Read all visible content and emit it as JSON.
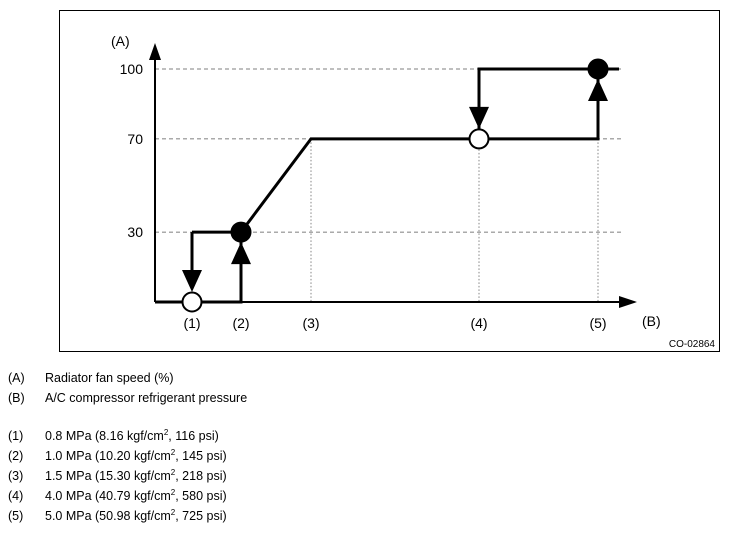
{
  "chart_data": {
    "type": "line",
    "y_axis_label": "(A)",
    "x_axis_label": "(B)",
    "y_ticks": [
      30,
      70,
      100
    ],
    "x_ticks": [
      "(1)",
      "(2)",
      "(3)",
      "(4)",
      "(5)"
    ],
    "ylim": [
      0,
      115
    ],
    "figure_code": "CO-02864",
    "grid": "dashed at y ticks, dotted at x ticks",
    "x_positions": {
      "(1)": 1,
      "(2)": 2,
      "(3)": 3,
      "(4)": 4,
      "(5)": 5
    },
    "rising_path": [
      [
        0.5,
        0
      ],
      [
        2,
        0
      ],
      [
        2,
        30
      ],
      [
        3,
        70
      ],
      [
        5,
        70
      ],
      [
        5,
        100
      ],
      [
        5.4,
        100
      ]
    ],
    "falling_path": [
      [
        5,
        100
      ],
      [
        4,
        100
      ],
      [
        4,
        70
      ]
    ],
    "falling_drop_low": [
      [
        1,
        30
      ],
      [
        2,
        30
      ]
    ],
    "arrows": [
      {
        "at": "(1)",
        "direction": "down",
        "from": 30,
        "to": 0
      },
      {
        "at": "(2)",
        "direction": "up",
        "from": 0,
        "to": 30
      },
      {
        "at": "(4)",
        "direction": "down",
        "from": 100,
        "to": 70
      },
      {
        "at": "(5)",
        "direction": "up",
        "from": 70,
        "to": 100
      }
    ],
    "markers": [
      {
        "x": "(1)",
        "y": 0,
        "fill": "open"
      },
      {
        "x": "(2)",
        "y": 30,
        "fill": "filled"
      },
      {
        "x": "(4)",
        "y": 70,
        "fill": "open"
      },
      {
        "x": "(5)",
        "y": 100,
        "fill": "filled"
      }
    ]
  },
  "legend": {
    "axes": [
      {
        "key": "(A)",
        "text": "Radiator fan speed (%)"
      },
      {
        "key": "(B)",
        "text": "A/C compressor refrigerant pressure"
      }
    ],
    "points": [
      {
        "key": "(1)",
        "pre": "0.8 MPa (8.16 kgf/cm",
        "sup": "2",
        "post": ", 116 psi)"
      },
      {
        "key": "(2)",
        "pre": "1.0 MPa (10.20 kgf/cm",
        "sup": "2",
        "post": ", 145 psi)"
      },
      {
        "key": "(3)",
        "pre": "1.5 MPa (15.30 kgf/cm",
        "sup": "2",
        "post": ", 218 psi)"
      },
      {
        "key": "(4)",
        "pre": "4.0 MPa (40.79 kgf/cm",
        "sup": "2",
        "post": ", 580 psi)"
      },
      {
        "key": "(5)",
        "pre": "5.0 MPa (50.98 kgf/cm",
        "sup": "2",
        "post": ", 725 psi)"
      }
    ]
  }
}
